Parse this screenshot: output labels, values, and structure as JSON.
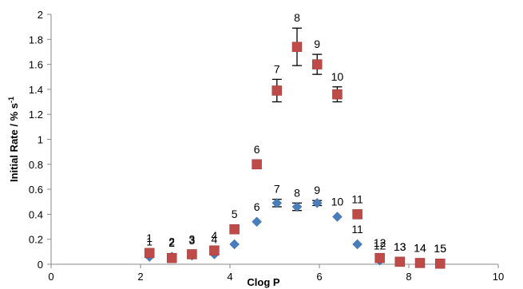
{
  "chart_data": {
    "type": "scatter",
    "xlabel": "Clog P",
    "ylabel": "Initial Rate / % s",
    "ylabel_superscript": "-1",
    "xlim": [
      0,
      10
    ],
    "ylim": [
      0,
      2
    ],
    "x_ticks": [
      "0",
      "2",
      "4",
      "6",
      "8",
      "10"
    ],
    "y_ticks": [
      "0",
      "0.2",
      "0.4",
      "0.6",
      "0.8",
      "1",
      "1.2",
      "1.4",
      "1.6",
      "1.8",
      "2"
    ],
    "grid": false,
    "legend": "none",
    "series": [
      {
        "marker": "diamond",
        "color": "#4a7ebb",
        "points": [
          {
            "label": "1",
            "x": 2.2,
            "y": 0.06
          },
          {
            "label": "2",
            "x": 2.7,
            "y": 0.06
          },
          {
            "label": "3",
            "x": 3.15,
            "y": 0.07
          },
          {
            "label": "4",
            "x": 3.65,
            "y": 0.08
          },
          {
            "label": "5",
            "x": 4.1,
            "y": 0.16
          },
          {
            "label": "6",
            "x": 4.6,
            "y": 0.34
          },
          {
            "label": "7",
            "x": 5.05,
            "y": 0.49,
            "err": 0.03
          },
          {
            "label": "8",
            "x": 5.5,
            "y": 0.46,
            "err": 0.03
          },
          {
            "label": "9",
            "x": 5.95,
            "y": 0.49,
            "err": 0.02
          },
          {
            "label": "10",
            "x": 6.4,
            "y": 0.38
          },
          {
            "label": "11",
            "x": 6.85,
            "y": 0.16
          },
          {
            "label": "12",
            "x": 7.35,
            "y": 0.03
          },
          {
            "label": "13",
            "x": 7.8,
            "y": 0.02
          },
          {
            "label": "14",
            "x": 8.25,
            "y": 0.01
          },
          {
            "label": "15",
            "x": 8.7,
            "y": 0.005
          }
        ]
      },
      {
        "marker": "square",
        "color": "#be4b48",
        "points": [
          {
            "label": "1",
            "x": 2.2,
            "y": 0.09
          },
          {
            "label": "2",
            "x": 2.7,
            "y": 0.05
          },
          {
            "label": "3",
            "x": 3.15,
            "y": 0.08
          },
          {
            "label": "4",
            "x": 3.65,
            "y": 0.11
          },
          {
            "label": "5",
            "x": 4.1,
            "y": 0.28
          },
          {
            "label": "6",
            "x": 4.6,
            "y": 0.8
          },
          {
            "label": "7",
            "x": 5.05,
            "y": 1.39,
            "err": 0.09
          },
          {
            "label": "8",
            "x": 5.5,
            "y": 1.74,
            "err": 0.15
          },
          {
            "label": "9",
            "x": 5.95,
            "y": 1.6,
            "err": 0.08
          },
          {
            "label": "10",
            "x": 6.4,
            "y": 1.36,
            "err": 0.06
          },
          {
            "label": "11",
            "x": 6.85,
            "y": 0.4
          },
          {
            "label": "12",
            "x": 7.35,
            "y": 0.05
          },
          {
            "label": "13",
            "x": 7.8,
            "y": 0.02
          },
          {
            "label": "14",
            "x": 8.25,
            "y": 0.01
          },
          {
            "label": "15",
            "x": 8.7,
            "y": 0.005
          }
        ]
      }
    ]
  }
}
